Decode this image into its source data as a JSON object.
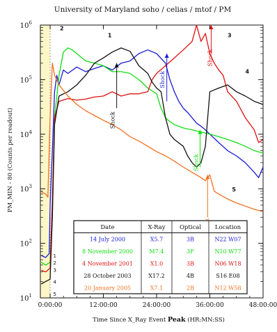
{
  "chart_data": {
    "type": "line",
    "title": "University of Maryland  soho / celias / mtof / PM",
    "xlabel_prefix": "Time Since X_Ray Event ",
    "xlabel_bold": "Peak",
    "xlabel_suffix": " (HR:MN:SS)",
    "ylabel": "PM_MIN - 80  (Counts per readout)",
    "x_units": "hours",
    "xlim": [
      -2.2,
      48
    ],
    "ylim": [
      10,
      1000000
    ],
    "y_scale": "log",
    "x_ticks": [
      {
        "value": 0,
        "label": "0:00:00"
      },
      {
        "value": 12,
        "label": "12:00:00"
      },
      {
        "value": 24,
        "label": "24:00:00"
      },
      {
        "value": 36,
        "label": "36:00:00"
      },
      {
        "value": 48,
        "label": "48:00:00"
      }
    ],
    "y_ticks": [
      {
        "value": 10,
        "base": "10",
        "exp": "1"
      },
      {
        "value": 100,
        "base": "10",
        "exp": "2"
      },
      {
        "value": 1000,
        "base": "10",
        "exp": "3"
      },
      {
        "value": 10000,
        "base": "10",
        "exp": "4"
      },
      {
        "value": 100000,
        "base": "10",
        "exp": "5"
      },
      {
        "value": 1000000,
        "base": "10",
        "exp": "6"
      }
    ],
    "shading": {
      "x_range": [
        -2.2,
        0
      ],
      "color": "#fdf7c8"
    },
    "series": [
      {
        "id": "1",
        "color": "#1a1ad6",
        "x": [
          -2,
          -1,
          -0.2,
          0,
          0.5,
          1,
          1.5,
          2,
          3,
          4,
          6,
          8,
          10,
          12,
          14,
          16,
          18,
          20,
          22,
          24,
          26,
          27,
          28,
          29,
          30,
          31,
          32,
          33,
          34,
          35,
          36,
          38,
          40,
          42,
          44,
          46,
          47,
          48
        ],
        "y": [
          60,
          55,
          65,
          500,
          5000,
          60000,
          120000,
          80000,
          150000,
          130000,
          170000,
          140000,
          160000,
          180000,
          150000,
          200000,
          220000,
          300000,
          350000,
          300000,
          200000,
          100000,
          60000,
          40000,
          30000,
          25000,
          20000,
          16000,
          14000,
          12000,
          10000,
          7000,
          5000,
          4000,
          3000,
          2000,
          1600,
          2500
        ]
      },
      {
        "id": "2",
        "color": "#11dd11",
        "x": [
          -2,
          -1,
          0,
          0.5,
          1,
          2,
          3,
          4,
          5,
          6,
          8,
          10,
          12,
          14,
          16,
          18,
          20,
          22,
          24,
          25,
          26,
          27,
          28,
          30,
          32,
          34,
          36,
          38,
          40,
          42,
          44,
          46,
          48
        ],
        "y": [
          45,
          40,
          45,
          300,
          20000,
          120000,
          320000,
          380000,
          350000,
          300000,
          220000,
          200000,
          180000,
          140000,
          140000,
          130000,
          100000,
          70000,
          55000,
          30000,
          20000,
          17000,
          15000,
          13000,
          12000,
          11000,
          10000,
          9000,
          8000,
          7000,
          6000,
          5000,
          4500
        ]
      },
      {
        "id": "3",
        "color": "#e01010",
        "x": [
          -2,
          -1,
          0,
          0.5,
          1,
          2,
          4,
          6,
          8,
          10,
          12,
          14,
          16,
          18,
          20,
          22,
          23,
          24,
          26,
          28,
          30,
          32,
          33,
          34,
          35,
          36,
          37,
          38,
          39,
          40,
          42,
          44,
          46,
          47,
          48
        ],
        "y": [
          32,
          30,
          35,
          600,
          20000,
          40000,
          45000,
          42000,
          44000,
          48000,
          50000,
          60000,
          50000,
          55000,
          55000,
          60000,
          100000,
          130000,
          180000,
          250000,
          350000,
          500000,
          1000000,
          500000,
          700000,
          300000,
          200000,
          150000,
          120000,
          60000,
          40000,
          20000,
          12000,
          7000,
          8000
        ]
      },
      {
        "id": "4",
        "color": "#111111",
        "x": [
          -2,
          -1,
          0,
          0.5,
          1,
          2,
          4,
          6,
          8,
          10,
          12,
          14,
          16,
          18,
          20,
          22,
          23,
          24,
          25,
          26,
          27,
          28,
          30,
          31,
          32,
          33,
          34,
          35,
          36,
          38,
          40,
          42,
          44,
          46,
          48
        ],
        "y": [
          18,
          20,
          22,
          300,
          15000,
          50000,
          60000,
          80000,
          120000,
          200000,
          250000,
          320000,
          380000,
          330000,
          180000,
          130000,
          90000,
          70000,
          60000,
          20000,
          10000,
          8000,
          6000,
          4000,
          3000,
          2500,
          3000,
          6000,
          60000,
          70000,
          80000,
          60000,
          50000,
          40000,
          35000
        ]
      },
      {
        "id": "5",
        "color": "#f07020",
        "x": [
          -2.2,
          -1,
          -0.5,
          0,
          0.5,
          1,
          2,
          4,
          6,
          8,
          10,
          12,
          14,
          16,
          18,
          20,
          22,
          24,
          26,
          28,
          30,
          32,
          34,
          35,
          36,
          37,
          38,
          40,
          42,
          44,
          46,
          48
        ],
        "y": [
          900,
          800,
          700,
          20000,
          200000,
          120000,
          80000,
          50000,
          35000,
          27000,
          22000,
          18000,
          15000,
          12000,
          9000,
          7500,
          6000,
          4800,
          4000,
          3200,
          2500,
          2000,
          1600,
          1400,
          1800,
          900,
          800,
          650,
          550,
          480,
          420,
          380
        ]
      }
    ],
    "series_labels": [
      {
        "text": "1",
        "x": 13,
        "y": 600000
      },
      {
        "text": "2",
        "x": 2.2,
        "y": 800000
      },
      {
        "text": "3",
        "x": 40,
        "y": 600000
      },
      {
        "text": "4",
        "x": 44,
        "y": 130000
      },
      {
        "text": "5",
        "x": 41,
        "y": 900
      }
    ],
    "left_labels": [
      {
        "text": "1",
        "y": 60
      },
      {
        "text": "2",
        "y": 45
      },
      {
        "text": "3",
        "y": 33
      },
      {
        "text": "4",
        "y": 20
      },
      {
        "text": "5",
        "y": 12
      }
    ],
    "annotations": [
      {
        "text": "Shock",
        "color": "#111111",
        "x": 14.5,
        "y": 18000,
        "arrow_from": [
          15,
          30000
        ],
        "arrow_to": [
          15,
          200000
        ]
      },
      {
        "text": "Shock",
        "color": "#1a1ad6",
        "x": 25.7,
        "y": 100000,
        "arrow_from": [
          26.3,
          40000
        ],
        "arrow_to": [
          26.3,
          300000
        ]
      },
      {
        "text": "Shock",
        "color": "#e01010",
        "x": 36.5,
        "y": 250000,
        "arrow_from": [
          36.3,
          300000
        ],
        "arrow_to": [
          36.3,
          1000000
        ]
      },
      {
        "text": "Shock",
        "color": "#11dd11",
        "x": 33.3,
        "y": 3000,
        "arrow_from": [
          33.8,
          2500
        ],
        "arrow_to": [
          33.8,
          12000
        ]
      },
      {
        "text": "Shock",
        "color": "#f07020",
        "x": 35.8,
        "y": 200,
        "arrow_from": [
          35.5,
          300
        ],
        "arrow_to": [
          35.5,
          1800
        ]
      }
    ],
    "table": {
      "headers": [
        "Date",
        "X-Ray",
        "Optical",
        "Location"
      ],
      "rows": [
        {
          "color": "#1a1ad6",
          "cells": [
            "14 July 2000",
            "X5.7",
            "3B",
            "N22 W07"
          ]
        },
        {
          "color": "#11dd11",
          "cells": [
            "8 November 2000",
            "M7.4",
            "3F",
            "N10 W77"
          ]
        },
        {
          "color": "#e01010",
          "cells": [
            "4 November 2001",
            "X1.0",
            "3B",
            "N06 W18"
          ]
        },
        {
          "color": "#111111",
          "cells": [
            "28 October 2003",
            "X17.2",
            "4B",
            "S16 E08"
          ]
        },
        {
          "color": "#f07020",
          "cells": [
            "20 January 2005",
            "X7.1",
            "2B",
            "N12 W58"
          ]
        }
      ]
    }
  }
}
